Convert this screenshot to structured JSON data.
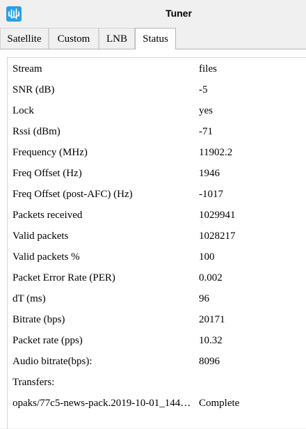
{
  "window": {
    "title": "Tuner",
    "icon": "waveform-icon",
    "accent_color": "#2d9fe0"
  },
  "tabs": [
    {
      "label": "Satellite",
      "active": false
    },
    {
      "label": "Custom",
      "active": false
    },
    {
      "label": "LNB",
      "active": false
    },
    {
      "label": "Status",
      "active": true
    }
  ],
  "status": {
    "rows": [
      {
        "key": "Stream",
        "value": "files"
      },
      {
        "key": "SNR (dB)",
        "value": "-5"
      },
      {
        "key": "Lock",
        "value": "yes"
      },
      {
        "key": "Rssi (dBm)",
        "value": "-71"
      },
      {
        "key": "Frequency (MHz)",
        "value": "11902.2"
      },
      {
        "key": "Freq Offset (Hz)",
        "value": "1946"
      },
      {
        "key": "Freq Offset (post-AFC) (Hz)",
        "value": "-1017"
      },
      {
        "key": "Packets received",
        "value": "1029941"
      },
      {
        "key": "Valid packets",
        "value": "1028217"
      },
      {
        "key": "Valid packets %",
        "value": "100"
      },
      {
        "key": "Packet Error Rate (PER)",
        "value": "0.002"
      },
      {
        "key": "dT (ms)",
        "value": "96"
      },
      {
        "key": "Bitrate (bps)",
        "value": "20171"
      },
      {
        "key": "Packet rate (pps)",
        "value": "10.32"
      },
      {
        "key": "Audio bitrate(bps):",
        "value": "8096"
      },
      {
        "key": "Transfers:",
        "value": ""
      },
      {
        "key": "opaks/77c5-news-pack.2019-10-01_144…",
        "value": "Complete"
      }
    ]
  }
}
